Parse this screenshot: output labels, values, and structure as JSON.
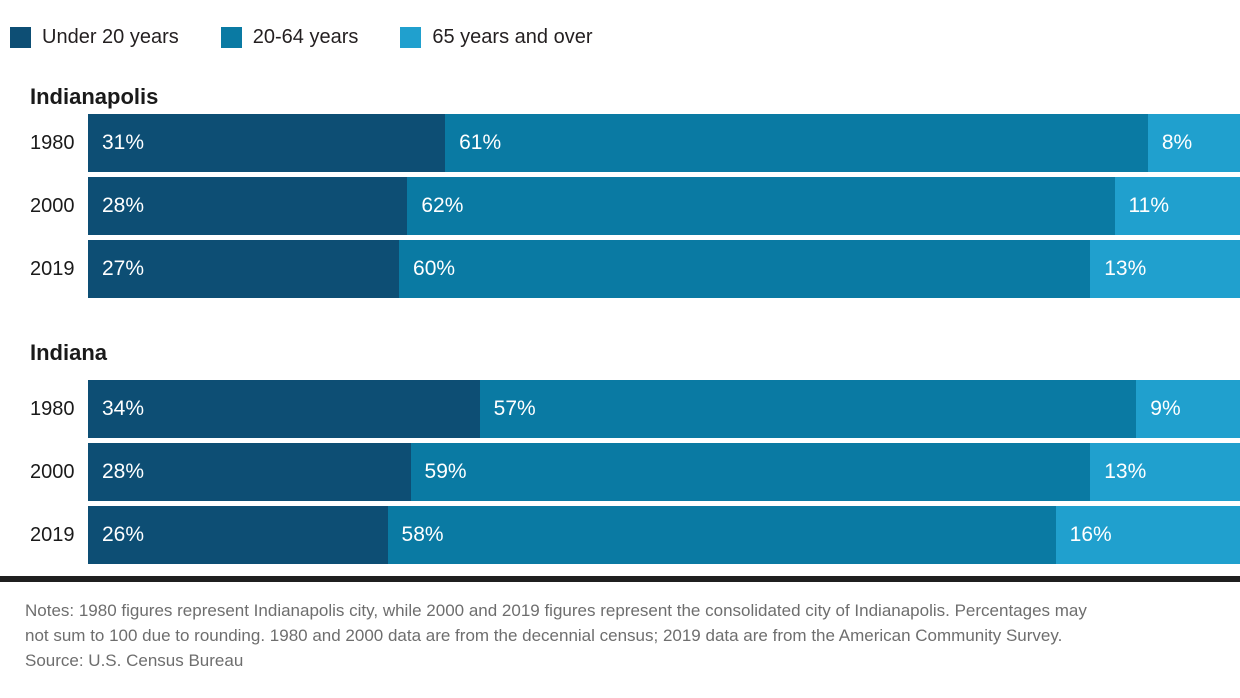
{
  "chart_data": {
    "type": "bar",
    "orientation": "horizontal-stacked",
    "title": "",
    "unit": "%",
    "xlim": [
      0,
      100
    ],
    "grid": false,
    "legend_position": "top-left",
    "legend": [
      "Under 20 years",
      "20-64 years",
      "65 years and over"
    ],
    "colors": [
      "#0d4e74",
      "#0a7aa3",
      "#20a0ce"
    ],
    "categories": [
      "1980",
      "2000",
      "2019"
    ],
    "groups": [
      {
        "name": "Indianapolis",
        "rows": [
          {
            "label": "1980",
            "values": [
              31,
              61,
              8
            ]
          },
          {
            "label": "2000",
            "values": [
              28,
              62,
              11
            ]
          },
          {
            "label": "2019",
            "values": [
              27,
              60,
              13
            ]
          }
        ]
      },
      {
        "name": "Indiana",
        "rows": [
          {
            "label": "1980",
            "values": [
              34,
              57,
              9
            ]
          },
          {
            "label": "2000",
            "values": [
              28,
              59,
              13
            ]
          },
          {
            "label": "2019",
            "values": [
              26,
              58,
              16
            ]
          }
        ]
      }
    ]
  },
  "footnote": {
    "line1": "Notes: 1980 figures represent Indianapolis city, while 2000 and 2019 figures represent the consolidated city of Indianapolis. Percentages may",
    "line2": "not sum to 100 due to rounding. 1980 and 2000 data are from the decennial census; 2019 data are from the American Community Survey.",
    "line3": "Source: U.S. Census Bureau"
  }
}
